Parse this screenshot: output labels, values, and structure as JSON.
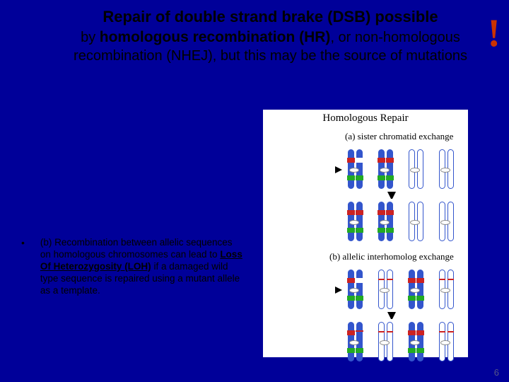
{
  "title": {
    "line1": "Repair of double strand brake (DSB) possible",
    "by": "by ",
    "hr": "homologous recombination (HR)",
    "or": ", or non-homologous",
    "line3": "recombination (NHEJ), but this may be the source of mutations"
  },
  "exclaim": "!",
  "figure": {
    "title": "Homologous Repair",
    "caption_a": "(a) sister chromatid exchange",
    "caption_b": "(b) allelic interhomolog exchange"
  },
  "bullet": {
    "dot": "•",
    "pre": "(b) Recombination between allelic sequences on homologous chromosomes can lead to ",
    "loh_full": "Loss Of Heterozygosity",
    "loh_abbr": " (LOH)",
    "post": " if a damaged wild type sequence is repaired using a mutant allele as a template."
  },
  "slide_number": "6",
  "colors": {
    "bg": "#000099",
    "accent_red": "#cc3300",
    "chrom_solid": "#3355cc",
    "band_red": "#cc2222",
    "band_green": "#22aa22"
  }
}
